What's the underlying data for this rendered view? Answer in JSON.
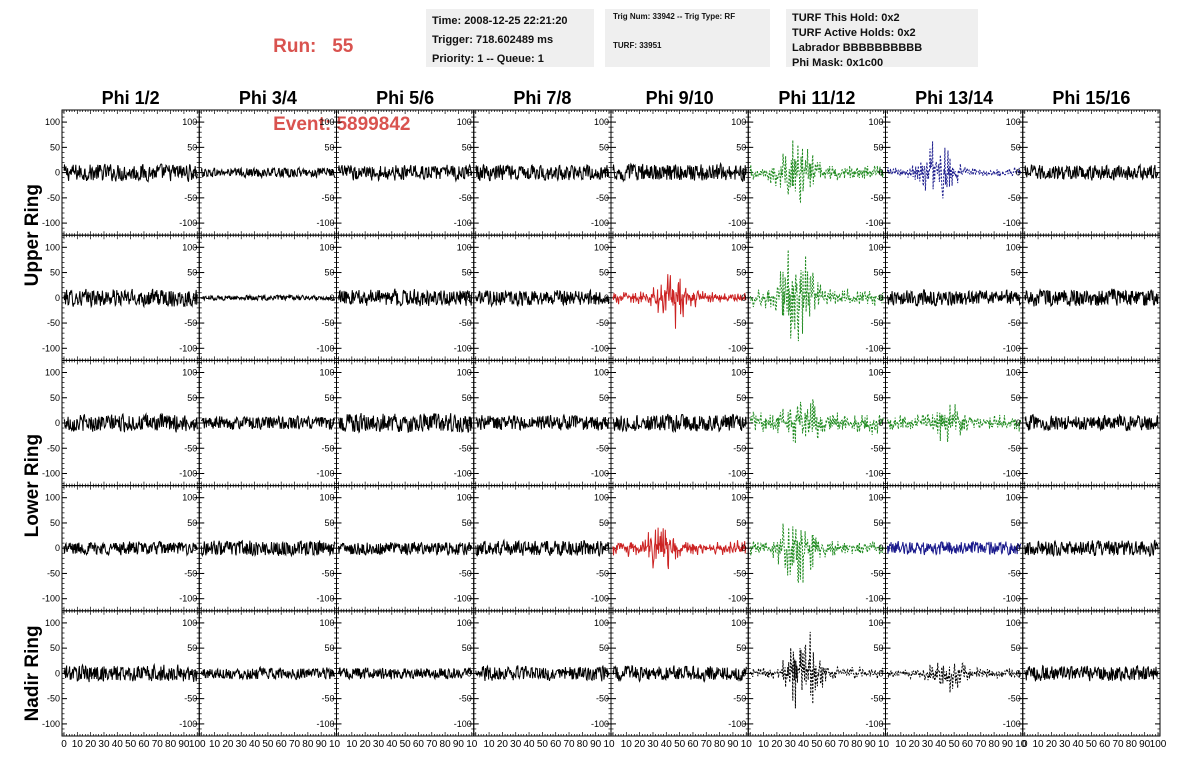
{
  "header": {
    "run_label": "Run:",
    "run_value": "55",
    "event_label": "Event:",
    "event_value": "5899842"
  },
  "info_panels": [
    [
      "Time: 2008-12-25 22:21:20",
      "Trigger: 718.602489 ms",
      "Priority: 1 -- Queue: 1"
    ],
    [
      "Trig Num: 33942 -- Trig Type: RF",
      "TURF: 33951"
    ],
    [
      "TURF This Hold: 0x2",
      "TURF Active Holds: 0x2",
      "Labrador BBBBBBBBBB",
      "Phi Mask: 0x1c00"
    ]
  ],
  "columns": [
    "Phi 1/2",
    "Phi 3/4",
    "Phi 5/6",
    "Phi 7/8",
    "Phi 9/10",
    "Phi 11/12",
    "Phi 13/14",
    "Phi 15/16"
  ],
  "ring_labels": [
    "Upper Ring",
    "Lower Ring",
    "Nadir Ring"
  ],
  "colors": {
    "black": "#000000",
    "red": "#cc2222",
    "green": "#1e8a1e",
    "blue": "#1a1a8c",
    "run_text": "#d9534f",
    "panel_bg": "#efefef"
  },
  "chart_data": {
    "type": "line",
    "title": "",
    "xlabel": "",
    "ylabel": "",
    "xlim": [
      0,
      100
    ],
    "ylim": [
      -120,
      120
    ],
    "y_ticks": [
      100,
      50,
      0,
      -50,
      -100
    ],
    "x_ticks": [
      0,
      10,
      20,
      30,
      40,
      50,
      60,
      70,
      80,
      90,
      100
    ],
    "x_tick_labels_all": [
      "0",
      "10",
      "20",
      "30",
      "40",
      "50",
      "60",
      "70",
      "80",
      "90",
      "100"
    ],
    "x_tick_labels_inner": [
      "10",
      "20",
      "30",
      "40",
      "50",
      "60",
      "70",
      "80",
      "90",
      "10"
    ],
    "rows": [
      [
        {
          "color": "black",
          "dash": false,
          "amp": 18,
          "burst_center": 0,
          "burst_amp": 0
        },
        {
          "color": "black",
          "dash": false,
          "amp": 10,
          "burst_center": 0,
          "burst_amp": 0
        },
        {
          "color": "black",
          "dash": false,
          "amp": 16,
          "burst_center": 0,
          "burst_amp": 0
        },
        {
          "color": "black",
          "dash": false,
          "amp": 16,
          "burst_center": 0,
          "burst_amp": 0
        },
        {
          "color": "black",
          "dash": false,
          "amp": 18,
          "burst_center": 0,
          "burst_amp": 0
        },
        {
          "color": "green",
          "dash": true,
          "amp": 18,
          "burst_center": 35,
          "burst_amp": 70
        },
        {
          "color": "blue",
          "dash": true,
          "amp": 12,
          "burst_center": 38,
          "burst_amp": 75
        },
        {
          "color": "black",
          "dash": false,
          "amp": 16,
          "burst_center": 0,
          "burst_amp": 0
        }
      ],
      [
        {
          "color": "black",
          "dash": false,
          "amp": 18,
          "burst_center": 0,
          "burst_amp": 0
        },
        {
          "color": "black",
          "dash": false,
          "amp": 5,
          "burst_center": 0,
          "burst_amp": 0
        },
        {
          "color": "black",
          "dash": false,
          "amp": 18,
          "burst_center": 0,
          "burst_amp": 0
        },
        {
          "color": "black",
          "dash": false,
          "amp": 16,
          "burst_center": 0,
          "burst_amp": 0
        },
        {
          "color": "red",
          "dash": false,
          "amp": 14,
          "burst_center": 45,
          "burst_amp": 55
        },
        {
          "color": "green",
          "dash": true,
          "amp": 20,
          "burst_center": 35,
          "burst_amp": 110
        },
        {
          "color": "black",
          "dash": false,
          "amp": 16,
          "burst_center": 0,
          "burst_amp": 0
        },
        {
          "color": "black",
          "dash": false,
          "amp": 18,
          "burst_center": 0,
          "burst_amp": 0
        }
      ],
      [
        {
          "color": "black",
          "dash": false,
          "amp": 18,
          "burst_center": 0,
          "burst_amp": 0
        },
        {
          "color": "black",
          "dash": false,
          "amp": 14,
          "burst_center": 0,
          "burst_amp": 0
        },
        {
          "color": "black",
          "dash": false,
          "amp": 20,
          "burst_center": 0,
          "burst_amp": 0
        },
        {
          "color": "black",
          "dash": false,
          "amp": 16,
          "burst_center": 0,
          "burst_amp": 0
        },
        {
          "color": "black",
          "dash": false,
          "amp": 18,
          "burst_center": 0,
          "burst_amp": 0
        },
        {
          "color": "green",
          "dash": true,
          "amp": 24,
          "burst_center": 40,
          "burst_amp": 45
        },
        {
          "color": "green",
          "dash": true,
          "amp": 20,
          "burst_center": 45,
          "burst_amp": 30
        },
        {
          "color": "black",
          "dash": false,
          "amp": 16,
          "burst_center": 0,
          "burst_amp": 0
        }
      ],
      [
        {
          "color": "black",
          "dash": false,
          "amp": 14,
          "burst_center": 0,
          "burst_amp": 0
        },
        {
          "color": "black",
          "dash": false,
          "amp": 16,
          "burst_center": 0,
          "burst_amp": 0
        },
        {
          "color": "black",
          "dash": false,
          "amp": 14,
          "burst_center": 0,
          "burst_amp": 0
        },
        {
          "color": "black",
          "dash": false,
          "amp": 16,
          "burst_center": 0,
          "burst_amp": 0
        },
        {
          "color": "red",
          "dash": false,
          "amp": 18,
          "burst_center": 35,
          "burst_amp": 40
        },
        {
          "color": "green",
          "dash": true,
          "amp": 18,
          "burst_center": 35,
          "burst_amp": 85
        },
        {
          "color": "blue",
          "dash": false,
          "amp": 14,
          "burst_center": 0,
          "burst_amp": 0
        },
        {
          "color": "black",
          "dash": false,
          "amp": 16,
          "burst_center": 0,
          "burst_amp": 0
        }
      ],
      [
        {
          "color": "black",
          "dash": false,
          "amp": 18,
          "burst_center": 0,
          "burst_amp": 0
        },
        {
          "color": "black",
          "dash": false,
          "amp": 12,
          "burst_center": 0,
          "burst_amp": 0
        },
        {
          "color": "black",
          "dash": false,
          "amp": 12,
          "burst_center": 0,
          "burst_amp": 0
        },
        {
          "color": "black",
          "dash": false,
          "amp": 16,
          "burst_center": 0,
          "burst_amp": 0
        },
        {
          "color": "black",
          "dash": false,
          "amp": 16,
          "burst_center": 0,
          "burst_amp": 0
        },
        {
          "color": "black",
          "dash": true,
          "amp": 14,
          "burst_center": 40,
          "burst_amp": 95
        },
        {
          "color": "black",
          "dash": true,
          "amp": 12,
          "burst_center": 45,
          "burst_amp": 35
        },
        {
          "color": "black",
          "dash": false,
          "amp": 16,
          "burst_center": 0,
          "burst_amp": 0
        }
      ]
    ]
  }
}
